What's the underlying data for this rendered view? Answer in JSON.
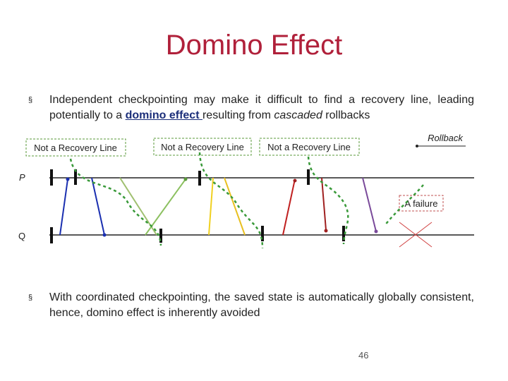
{
  "title": "Domino Effect",
  "bullets": [
    {
      "parts": [
        "Independent checkpointing may make it difficult to find a recovery line, leading potentially to a ",
        "domino effect ",
        "resulting from ",
        "cascaded",
        " rollbacks"
      ]
    },
    {
      "parts": [
        "With coordinated checkpointing, the saved state is automatically globally consistent, hence, domino effect is inherently avoided"
      ]
    }
  ],
  "diagram": {
    "line_labels": [
      "Not a Recovery Line",
      "Not a Recovery Line",
      "Not a Recovery Line"
    ],
    "rollback": "Rollback",
    "process_p": "P",
    "process_q": "Q",
    "failure": "A failure"
  },
  "page_number": "46"
}
